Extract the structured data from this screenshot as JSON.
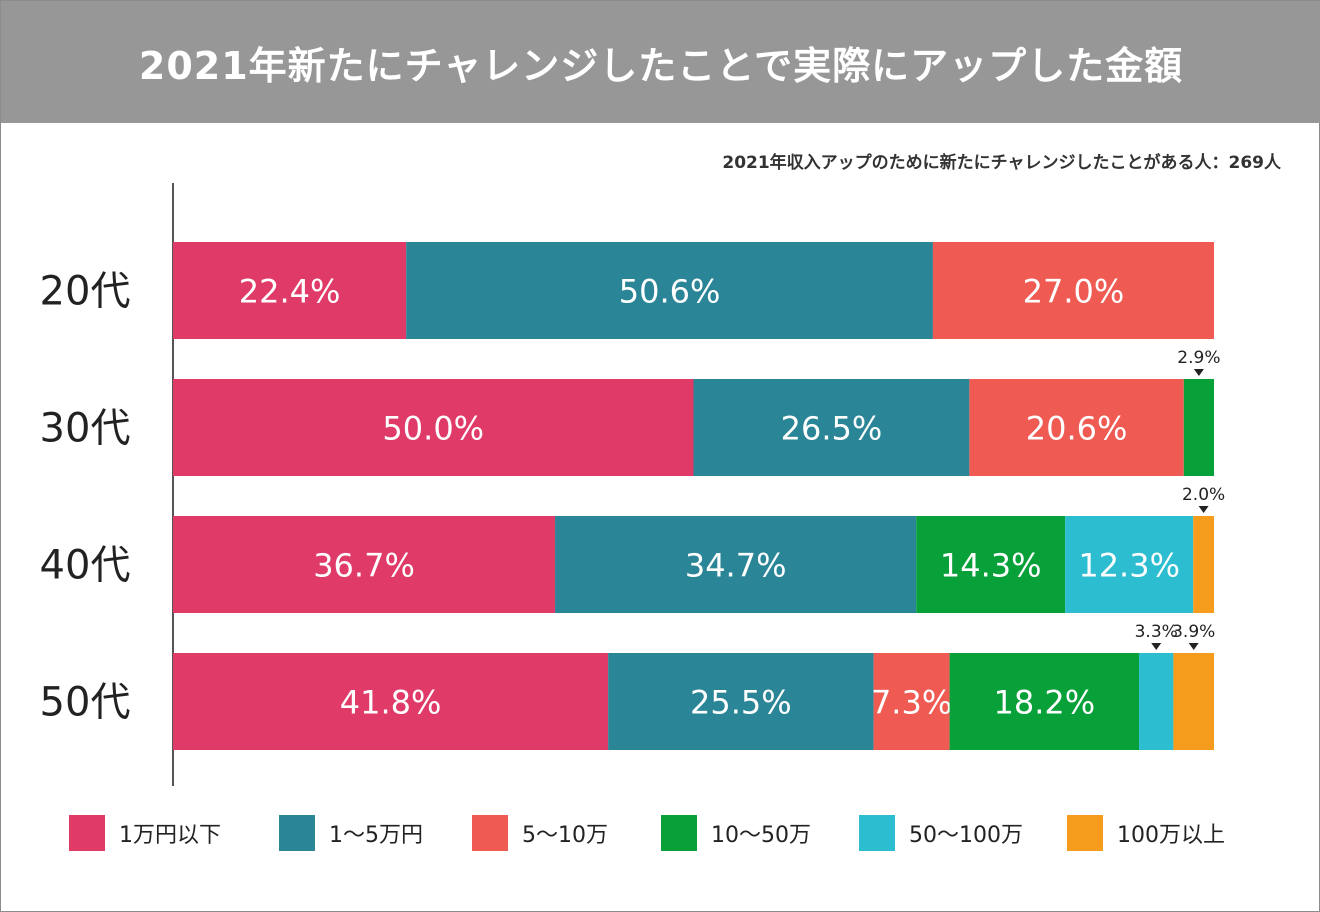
{
  "title": "2021年新たにチャレンジしたことで実際にアップした金額",
  "subtitle": "2021年収入アップのために新たにチャレンジしたことがある人：269人",
  "chart_data": {
    "type": "bar",
    "orientation": "horizontal",
    "stacked": true,
    "unit": "%",
    "categories": [
      "20代",
      "30代",
      "40代",
      "50代"
    ],
    "series": [
      {
        "name": "1万円以下",
        "color": "#e03a68",
        "values": [
          22.4,
          50.0,
          36.7,
          41.8
        ],
        "labels": [
          "22.4%",
          "50.0%",
          "36.7%",
          "41.8%"
        ]
      },
      {
        "name": "1～5万円",
        "color": "#2a8596",
        "values": [
          50.6,
          26.5,
          34.7,
          25.5
        ],
        "labels": [
          "50.6%",
          "26.5%",
          "34.7%",
          "25.5%"
        ]
      },
      {
        "name": "5～10万",
        "color": "#ef5a52",
        "values": [
          27.0,
          20.6,
          0,
          7.3
        ],
        "labels": [
          "27.0%",
          "20.6%",
          "",
          "7.3%"
        ]
      },
      {
        "name": "10～50万",
        "color": "#08a039",
        "values": [
          0,
          2.9,
          14.3,
          18.2
        ],
        "labels": [
          "",
          "2.9%",
          "14.3%",
          "18.2%"
        ]
      },
      {
        "name": "50～100万",
        "color": "#2cbdd0",
        "values": [
          0,
          0,
          12.3,
          3.3
        ],
        "labels": [
          "",
          "",
          "12.3%",
          "3.3%"
        ]
      },
      {
        "name": "100万以上",
        "color": "#f59c1c",
        "values": [
          0,
          0,
          2.0,
          3.9
        ],
        "labels": [
          "",
          "",
          "2.0%",
          "3.9%"
        ]
      }
    ],
    "callouts": [
      {
        "category": "30代",
        "series": "10～50万",
        "label": "2.9%"
      },
      {
        "category": "40代",
        "series": "100万以上",
        "label": "2.0%"
      },
      {
        "category": "50代",
        "series": "50～100万",
        "label": "3.3%"
      },
      {
        "category": "50代",
        "series": "100万以上",
        "label": "3.9%"
      }
    ],
    "xlim": [
      0,
      100
    ],
    "legend_position": "bottom"
  }
}
